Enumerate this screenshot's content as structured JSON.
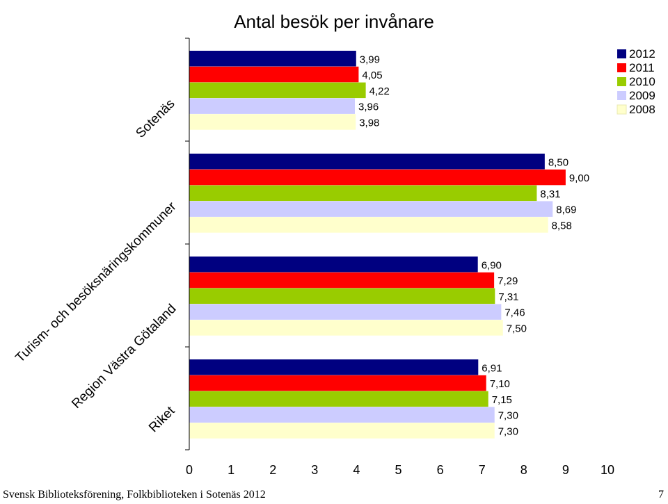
{
  "chart_data": {
    "type": "bar",
    "orientation": "horizontal",
    "title": "Antal besök per invånare",
    "categories": [
      "Sotenäs",
      "Turism- och besöksnäringskommuner",
      "Region Västra Götaland",
      "Riket"
    ],
    "series": [
      {
        "name": "2012",
        "color": "#000080",
        "values": [
          3.99,
          8.5,
          6.9,
          6.91
        ],
        "labels": [
          "3,99",
          "8,50",
          "6,90",
          "6,91"
        ]
      },
      {
        "name": "2011",
        "color": "#FF0000",
        "values": [
          4.05,
          9.0,
          7.29,
          7.1
        ],
        "labels": [
          "4,05",
          "9,00",
          "7,29",
          "7,10"
        ]
      },
      {
        "name": "2010",
        "color": "#99CC00",
        "values": [
          4.22,
          8.31,
          7.31,
          7.15
        ],
        "labels": [
          "4,22",
          "8,31",
          "7,31",
          "7,15"
        ]
      },
      {
        "name": "2009",
        "color": "#CCCCFF",
        "values": [
          3.96,
          8.69,
          7.46,
          7.3
        ],
        "labels": [
          "3,96",
          "8,69",
          "7,46",
          "7,30"
        ]
      },
      {
        "name": "2008",
        "color": "#FFFFCC",
        "values": [
          3.98,
          8.58,
          7.5,
          7.3
        ],
        "labels": [
          "3,98",
          "8,58",
          "7,50",
          "7,30"
        ]
      }
    ],
    "xlim": [
      0,
      10
    ],
    "xticks": [
      "0",
      "1",
      "2",
      "3",
      "4",
      "5",
      "6",
      "7",
      "8",
      "9",
      "10"
    ],
    "legend": "top-right",
    "grid": false
  },
  "footer": {
    "left": "Svensk Biblioteksförening, Folkbiblioteken i Sotenäs 2012",
    "right": "7"
  }
}
